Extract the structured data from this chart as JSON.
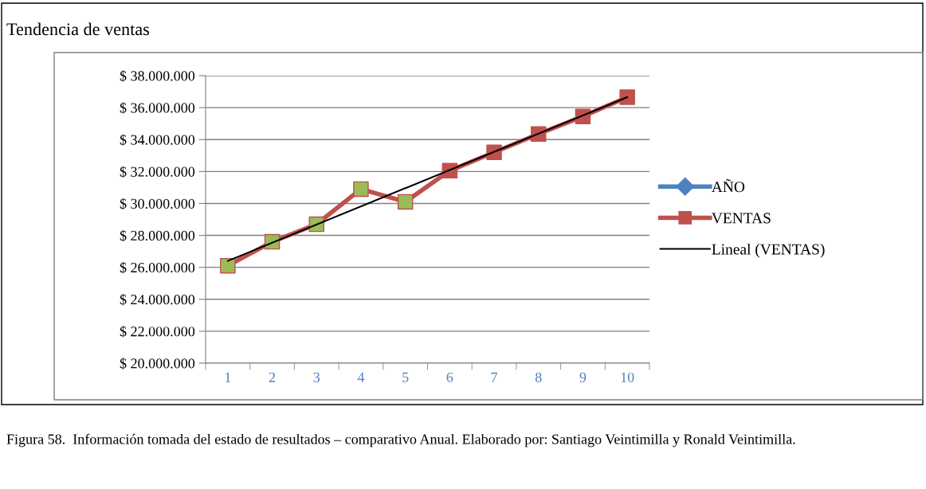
{
  "chart_data": {
    "type": "line",
    "title": "Tendencia de ventas",
    "categories": [
      "1",
      "2",
      "3",
      "4",
      "5",
      "6",
      "7",
      "8",
      "9",
      "10"
    ],
    "series": [
      {
        "name": "AÑO",
        "color": "#4f81bd",
        "marker": "diamond",
        "values": [
          null,
          null,
          null,
          null,
          null,
          null,
          null,
          null,
          null,
          null
        ]
      },
      {
        "name": "VENTAS",
        "color": "#c0504d",
        "marker": "square",
        "colors": [
          "#9bbb59",
          "#9bbb59",
          "#9bbb59",
          "#9bbb59",
          "#9bbb59",
          "#c0504d",
          "#c0504d",
          "#c0504d",
          "#c0504d",
          "#c0504d"
        ],
        "values": [
          26100000,
          27600000,
          28700000,
          30900000,
          30100000,
          32050000,
          33200000,
          34350000,
          35450000,
          36650000
        ]
      },
      {
        "name": "Lineal (VENTAS)",
        "color": "#000000",
        "marker": "none",
        "x": [
          "1",
          "10"
        ],
        "values": [
          26400000,
          36650000
        ]
      }
    ],
    "ylim": [
      20000000,
      38000000
    ],
    "yticks": [
      {
        "value": 20000000,
        "label": "$ 20.000.000"
      },
      {
        "value": 22000000,
        "label": "$ 22.000.000"
      },
      {
        "value": 24000000,
        "label": "$ 24.000.000"
      },
      {
        "value": 26000000,
        "label": "$ 26.000.000"
      },
      {
        "value": 28000000,
        "label": "$ 28.000.000"
      },
      {
        "value": 30000000,
        "label": "$ 30.000.000"
      },
      {
        "value": 32000000,
        "label": "$ 32.000.000"
      },
      {
        "value": 34000000,
        "label": "$ 34.000.000"
      },
      {
        "value": 36000000,
        "label": "$ 36.000.000"
      },
      {
        "value": 38000000,
        "label": "$ 38.000.000"
      }
    ],
    "grid": "y",
    "legend": "right",
    "line_style": "solid",
    "annotations": [
      "Figura 58.  Información tomada del estado de resultados – comparativo Anual. Elaborado por: Santiago Veintimilla y Ronald Veintimilla."
    ]
  }
}
